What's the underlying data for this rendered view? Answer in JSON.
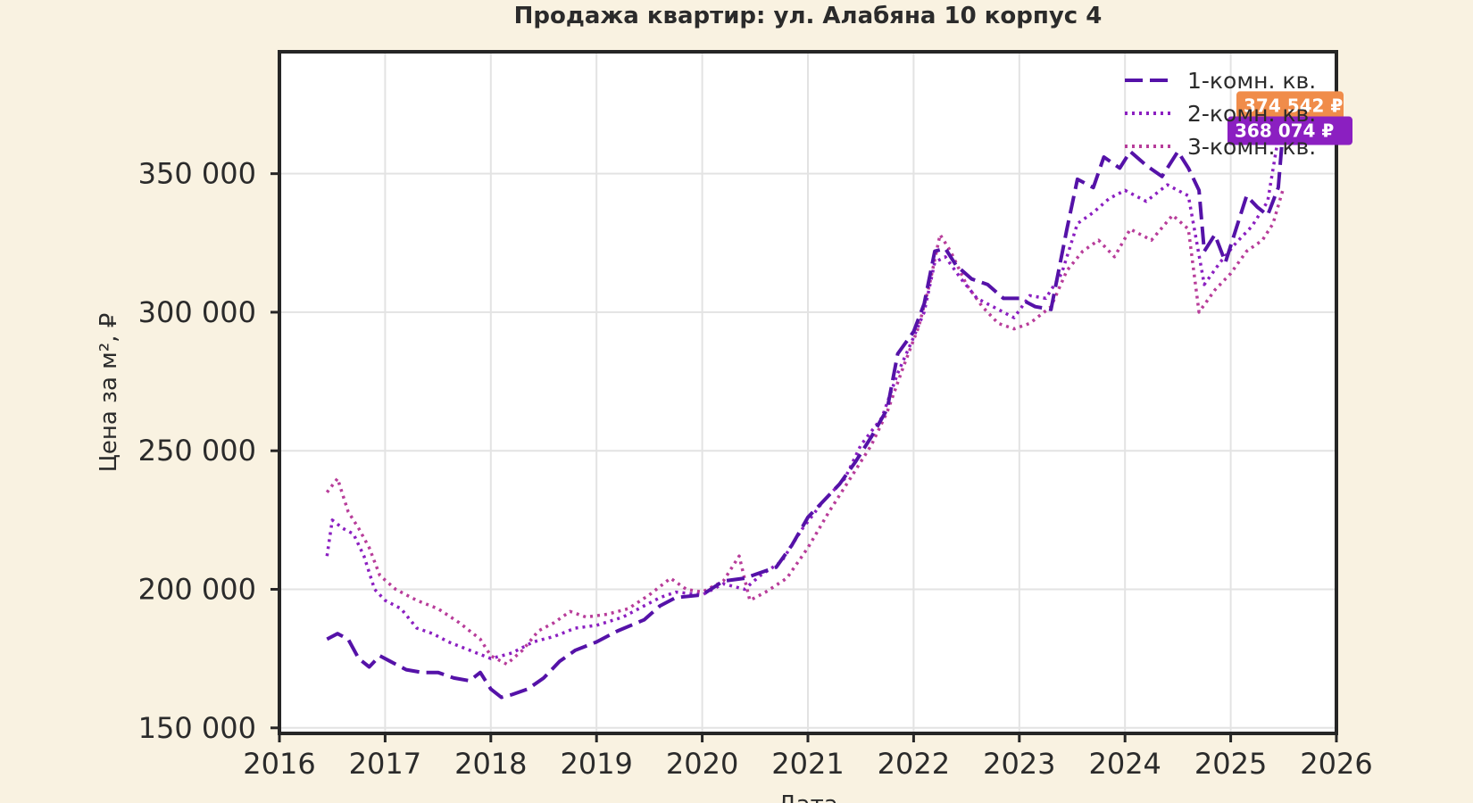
{
  "chart_data": {
    "type": "line",
    "title": "Продажа квартир: ул. Алабяна 10 корпус 4",
    "xlabel": "Дата",
    "ylabel": "Цена за м², ₽",
    "x_ticks": [
      "2016",
      "2017",
      "2018",
      "2019",
      "2020",
      "2021",
      "2022",
      "2023",
      "2024",
      "2025",
      "2026"
    ],
    "y_ticks": [
      {
        "value": 150000,
        "label": "150 000"
      },
      {
        "value": 200000,
        "label": "200 000"
      },
      {
        "value": 250000,
        "label": "250 000"
      },
      {
        "value": 300000,
        "label": "300 000"
      },
      {
        "value": 350000,
        "label": "350 000"
      }
    ],
    "xlim": [
      2016.0,
      2026.0
    ],
    "ylim": [
      148000,
      394000
    ],
    "grid": true,
    "legend_position": "top-right",
    "series": [
      {
        "name": "1-комн. кв.",
        "color": "#5512a8",
        "style": "dashed",
        "points": [
          [
            2016.45,
            182000
          ],
          [
            2016.55,
            184000
          ],
          [
            2016.65,
            182000
          ],
          [
            2016.75,
            175000
          ],
          [
            2016.85,
            172000
          ],
          [
            2016.95,
            176000
          ],
          [
            2017.05,
            174000
          ],
          [
            2017.2,
            171000
          ],
          [
            2017.35,
            170000
          ],
          [
            2017.5,
            170000
          ],
          [
            2017.65,
            168000
          ],
          [
            2017.8,
            167000
          ],
          [
            2017.9,
            170000
          ],
          [
            2018.0,
            164000
          ],
          [
            2018.1,
            161000
          ],
          [
            2018.2,
            162000
          ],
          [
            2018.35,
            164000
          ],
          [
            2018.5,
            168000
          ],
          [
            2018.65,
            174000
          ],
          [
            2018.8,
            178000
          ],
          [
            2019.0,
            181000
          ],
          [
            2019.2,
            185000
          ],
          [
            2019.45,
            189000
          ],
          [
            2019.6,
            194000
          ],
          [
            2019.75,
            197000
          ],
          [
            2020.0,
            198000
          ],
          [
            2020.2,
            203000
          ],
          [
            2020.4,
            204000
          ],
          [
            2020.55,
            206000
          ],
          [
            2020.7,
            208000
          ],
          [
            2020.85,
            216000
          ],
          [
            2021.0,
            226000
          ],
          [
            2021.15,
            232000
          ],
          [
            2021.3,
            238000
          ],
          [
            2021.45,
            246000
          ],
          [
            2021.6,
            255000
          ],
          [
            2021.75,
            265000
          ],
          [
            2021.85,
            285000
          ],
          [
            2022.0,
            293000
          ],
          [
            2022.1,
            303000
          ],
          [
            2022.2,
            322000
          ],
          [
            2022.3,
            323000
          ],
          [
            2022.4,
            317000
          ],
          [
            2022.55,
            312000
          ],
          [
            2022.7,
            310000
          ],
          [
            2022.85,
            305000
          ],
          [
            2023.0,
            305000
          ],
          [
            2023.15,
            302000
          ],
          [
            2023.3,
            301000
          ],
          [
            2023.45,
            330000
          ],
          [
            2023.55,
            348000
          ],
          [
            2023.7,
            345000
          ],
          [
            2023.8,
            356000
          ],
          [
            2023.95,
            352000
          ],
          [
            2024.05,
            358000
          ],
          [
            2024.2,
            353000
          ],
          [
            2024.35,
            349000
          ],
          [
            2024.5,
            358000
          ],
          [
            2024.6,
            352000
          ],
          [
            2024.7,
            344000
          ],
          [
            2024.75,
            322000
          ],
          [
            2024.85,
            328000
          ],
          [
            2024.95,
            318000
          ],
          [
            2025.05,
            330000
          ],
          [
            2025.15,
            342000
          ],
          [
            2025.25,
            338000
          ],
          [
            2025.35,
            335000
          ],
          [
            2025.45,
            345000
          ],
          [
            2025.5,
            368074
          ]
        ]
      },
      {
        "name": "2-комн. кв.",
        "color": "#8b1fc1",
        "style": "dotted",
        "points": [
          [
            2016.45,
            212000
          ],
          [
            2016.5,
            225000
          ],
          [
            2016.6,
            222000
          ],
          [
            2016.7,
            220000
          ],
          [
            2016.8,
            212000
          ],
          [
            2016.9,
            200000
          ],
          [
            2017.0,
            196000
          ],
          [
            2017.15,
            193000
          ],
          [
            2017.3,
            186000
          ],
          [
            2017.45,
            184000
          ],
          [
            2017.6,
            181000
          ],
          [
            2017.8,
            178000
          ],
          [
            2018.0,
            175000
          ],
          [
            2018.2,
            177000
          ],
          [
            2018.4,
            181000
          ],
          [
            2018.6,
            183000
          ],
          [
            2018.8,
            186000
          ],
          [
            2019.0,
            187000
          ],
          [
            2019.25,
            190000
          ],
          [
            2019.45,
            194000
          ],
          [
            2019.6,
            197000
          ],
          [
            2019.75,
            199000
          ],
          [
            2020.0,
            198000
          ],
          [
            2020.2,
            202000
          ],
          [
            2020.4,
            200000
          ],
          [
            2020.55,
            205000
          ],
          [
            2020.75,
            210000
          ],
          [
            2020.95,
            222000
          ],
          [
            2021.15,
            232000
          ],
          [
            2021.35,
            240000
          ],
          [
            2021.5,
            252000
          ],
          [
            2021.7,
            262000
          ],
          [
            2021.85,
            278000
          ],
          [
            2022.0,
            291000
          ],
          [
            2022.1,
            300000
          ],
          [
            2022.2,
            318000
          ],
          [
            2022.3,
            320000
          ],
          [
            2022.45,
            312000
          ],
          [
            2022.6,
            305000
          ],
          [
            2022.8,
            301000
          ],
          [
            2022.95,
            298000
          ],
          [
            2023.1,
            306000
          ],
          [
            2023.25,
            305000
          ],
          [
            2023.4,
            314000
          ],
          [
            2023.55,
            332000
          ],
          [
            2023.7,
            336000
          ],
          [
            2023.85,
            341000
          ],
          [
            2024.0,
            344000
          ],
          [
            2024.2,
            340000
          ],
          [
            2024.4,
            346000
          ],
          [
            2024.6,
            342000
          ],
          [
            2024.75,
            310000
          ],
          [
            2024.9,
            318000
          ],
          [
            2025.05,
            325000
          ],
          [
            2025.2,
            331000
          ],
          [
            2025.35,
            340000
          ],
          [
            2025.5,
            374542
          ]
        ]
      },
      {
        "name": "3-комн. кв.",
        "color": "#b83d9a",
        "style": "dotted",
        "points": [
          [
            2016.45,
            235000
          ],
          [
            2016.55,
            240000
          ],
          [
            2016.65,
            228000
          ],
          [
            2016.75,
            222000
          ],
          [
            2016.85,
            215000
          ],
          [
            2016.95,
            205000
          ],
          [
            2017.1,
            200000
          ],
          [
            2017.3,
            196000
          ],
          [
            2017.5,
            193000
          ],
          [
            2017.7,
            188000
          ],
          [
            2017.9,
            182000
          ],
          [
            2018.0,
            176000
          ],
          [
            2018.15,
            173000
          ],
          [
            2018.3,
            178000
          ],
          [
            2018.45,
            185000
          ],
          [
            2018.6,
            188000
          ],
          [
            2018.75,
            192000
          ],
          [
            2018.9,
            190000
          ],
          [
            2019.1,
            191000
          ],
          [
            2019.3,
            193000
          ],
          [
            2019.5,
            198000
          ],
          [
            2019.7,
            204000
          ],
          [
            2019.85,
            200000
          ],
          [
            2020.0,
            199000
          ],
          [
            2020.2,
            203000
          ],
          [
            2020.35,
            212000
          ],
          [
            2020.45,
            196000
          ],
          [
            2020.6,
            199000
          ],
          [
            2020.8,
            204000
          ],
          [
            2021.0,
            215000
          ],
          [
            2021.2,
            228000
          ],
          [
            2021.4,
            240000
          ],
          [
            2021.6,
            252000
          ],
          [
            2021.75,
            264000
          ],
          [
            2021.9,
            280000
          ],
          [
            2022.05,
            295000
          ],
          [
            2022.15,
            310000
          ],
          [
            2022.25,
            328000
          ],
          [
            2022.35,
            322000
          ],
          [
            2022.5,
            310000
          ],
          [
            2022.65,
            302000
          ],
          [
            2022.8,
            296000
          ],
          [
            2022.95,
            294000
          ],
          [
            2023.1,
            296000
          ],
          [
            2023.3,
            302000
          ],
          [
            2023.45,
            315000
          ],
          [
            2023.6,
            322000
          ],
          [
            2023.75,
            326000
          ],
          [
            2023.9,
            320000
          ],
          [
            2024.05,
            330000
          ],
          [
            2024.25,
            326000
          ],
          [
            2024.45,
            335000
          ],
          [
            2024.6,
            330000
          ],
          [
            2024.7,
            300000
          ],
          [
            2024.85,
            308000
          ],
          [
            2025.0,
            314000
          ],
          [
            2025.15,
            322000
          ],
          [
            2025.3,
            326000
          ],
          [
            2025.4,
            332000
          ],
          [
            2025.5,
            345000
          ]
        ]
      }
    ],
    "end_labels": [
      {
        "text": "374 542 ₽",
        "value": 374542,
        "color": "#f08c4a"
      },
      {
        "text": "368 074 ₽",
        "value": 368074,
        "color": "#8b1fc1"
      }
    ]
  }
}
